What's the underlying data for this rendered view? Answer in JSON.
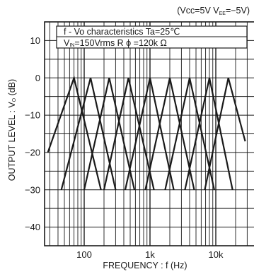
{
  "chart_data": {
    "type": "line",
    "conditions": {
      "open": "(Vcc=5V V",
      "ee_sub": "EE",
      "close": "=−5V)"
    },
    "legend": {
      "line1": "f - Vo characteristics   Ta=25℃",
      "vin_prefix": "V",
      "vin_sub": "IN",
      "vin_rest": "=150Vrms   R ϕ =120k Ω"
    },
    "ylabel": {
      "main": "OUTPUT   LEVEL : V",
      "sub": "O",
      "unit": " (dB)"
    },
    "xlabel": "FREQUENCY : f (Hz)",
    "xscale": "log",
    "xlim": [
      25,
      40000
    ],
    "ylim": [
      -45,
      15
    ],
    "yticks": [
      10,
      0,
      -10,
      -20,
      -30,
      -40
    ],
    "ytick_labels": [
      "10",
      "0",
      "−10",
      "−20",
      "−30",
      "−40"
    ],
    "xticks": [
      100,
      1000,
      10000
    ],
    "xtick_labels": [
      "100",
      "1k",
      "10k"
    ],
    "grid": true,
    "series": [
      {
        "x": [
          28,
          70,
          180
        ],
        "y": [
          -20,
          0,
          -30
        ]
      },
      {
        "x": [
          45,
          125,
          300
        ],
        "y": [
          -30,
          0,
          -30
        ]
      },
      {
        "x": [
          100,
          240,
          580
        ],
        "y": [
          -30,
          0,
          -30
        ]
      },
      {
        "x": [
          200,
          470,
          1150
        ],
        "y": [
          -30,
          0,
          -30
        ]
      },
      {
        "x": [
          420,
          1000,
          2300
        ],
        "y": [
          -30,
          0,
          -30
        ]
      },
      {
        "x": [
          850,
          2000,
          4700
        ],
        "y": [
          -30,
          0,
          -30
        ]
      },
      {
        "x": [
          1700,
          4000,
          9500
        ],
        "y": [
          -30,
          0,
          -30
        ]
      },
      {
        "x": [
          3400,
          8000,
          18000
        ],
        "y": [
          -30,
          0,
          -30
        ]
      },
      {
        "x": [
          6800,
          15500,
          28000
        ],
        "y": [
          -30,
          0,
          -17
        ]
      }
    ]
  }
}
